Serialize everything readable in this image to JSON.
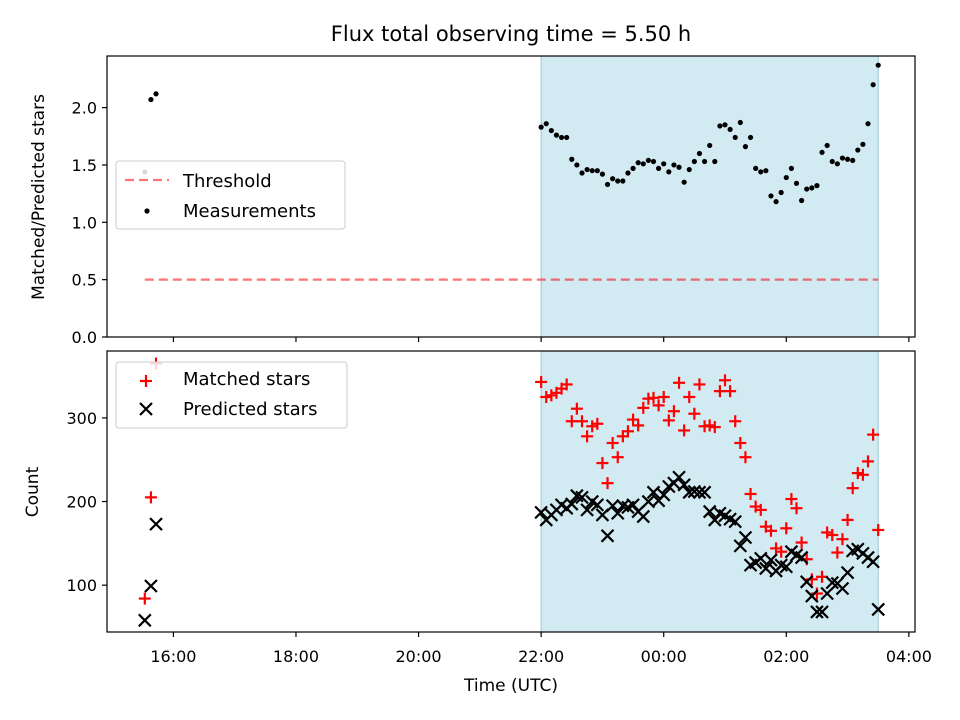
{
  "figure": {
    "title": "Flux total observing time = 5.50 h",
    "xlabel": "Time (UTC)",
    "xticks": [
      "16:00",
      "18:00",
      "20:00",
      "22:00",
      "00:00",
      "02:00",
      "04:00"
    ],
    "shaded_span": [
      "22:00",
      "03:30"
    ]
  },
  "colors": {
    "shade": "#add8e6",
    "threshold": "#ff0000",
    "matched": "#ff0000",
    "predicted": "#000000",
    "measurements": "#000000"
  },
  "chart_data": [
    {
      "type": "scatter",
      "ylabel": "Matched/Predicted stars",
      "xlim": [
        "14:55",
        "04:06"
      ],
      "ylim": [
        0,
        2.45
      ],
      "yticks": [
        "0.0",
        "0.5",
        "1.0",
        "1.5",
        "2.0"
      ],
      "legend_position": "center-left",
      "threshold": {
        "name": "Threshold",
        "value": 0.5,
        "x_range": [
          "15:32",
          "03:30"
        ]
      },
      "series": [
        {
          "name": "Measurements",
          "points": [
            [
              "15:32",
              1.44
            ],
            [
              "15:38",
              2.07
            ],
            [
              "15:43",
              2.12
            ],
            [
              "22:00",
              1.83
            ],
            [
              "22:05",
              1.86
            ],
            [
              "22:10",
              1.8
            ],
            [
              "22:15",
              1.76
            ],
            [
              "22:20",
              1.74
            ],
            [
              "22:25",
              1.74
            ],
            [
              "22:30",
              1.55
            ],
            [
              "22:35",
              1.5
            ],
            [
              "22:40",
              1.43
            ],
            [
              "22:45",
              1.46
            ],
            [
              "22:50",
              1.45
            ],
            [
              "22:55",
              1.45
            ],
            [
              "23:00",
              1.42
            ],
            [
              "23:05",
              1.33
            ],
            [
              "23:10",
              1.38
            ],
            [
              "23:15",
              1.36
            ],
            [
              "23:20",
              1.36
            ],
            [
              "23:25",
              1.43
            ],
            [
              "23:30",
              1.47
            ],
            [
              "23:35",
              1.52
            ],
            [
              "23:40",
              1.51
            ],
            [
              "23:45",
              1.54
            ],
            [
              "23:50",
              1.53
            ],
            [
              "23:55",
              1.47
            ],
            [
              "00:00",
              1.51
            ],
            [
              "00:05",
              1.44
            ],
            [
              "00:10",
              1.5
            ],
            [
              "00:15",
              1.48
            ],
            [
              "00:20",
              1.35
            ],
            [
              "00:25",
              1.46
            ],
            [
              "00:30",
              1.53
            ],
            [
              "00:35",
              1.6
            ],
            [
              "00:40",
              1.53
            ],
            [
              "00:45",
              1.67
            ],
            [
              "00:50",
              1.53
            ],
            [
              "00:55",
              1.84
            ],
            [
              "01:00",
              1.85
            ],
            [
              "01:05",
              1.81
            ],
            [
              "01:10",
              1.74
            ],
            [
              "01:15",
              1.87
            ],
            [
              "01:20",
              1.66
            ],
            [
              "01:25",
              1.74
            ],
            [
              "01:30",
              1.47
            ],
            [
              "01:35",
              1.44
            ],
            [
              "01:40",
              1.45
            ],
            [
              "01:45",
              1.23
            ],
            [
              "01:50",
              1.18
            ],
            [
              "01:55",
              1.26
            ],
            [
              "02:00",
              1.39
            ],
            [
              "02:05",
              1.47
            ],
            [
              "02:10",
              1.34
            ],
            [
              "02:15",
              1.19
            ],
            [
              "02:20",
              1.29
            ],
            [
              "02:25",
              1.3
            ],
            [
              "02:30",
              1.32
            ],
            [
              "02:35",
              1.61
            ],
            [
              "02:40",
              1.67
            ],
            [
              "02:45",
              1.53
            ],
            [
              "02:50",
              1.51
            ],
            [
              "02:55",
              1.56
            ],
            [
              "03:00",
              1.55
            ],
            [
              "03:05",
              1.54
            ],
            [
              "03:10",
              1.63
            ],
            [
              "03:15",
              1.68
            ],
            [
              "03:20",
              1.86
            ],
            [
              "03:25",
              2.2
            ],
            [
              "03:30",
              2.37
            ]
          ]
        }
      ]
    },
    {
      "type": "scatter",
      "ylabel": "Count",
      "xlim": [
        "14:55",
        "04:06"
      ],
      "ylim": [
        44,
        380
      ],
      "yticks": [
        "100",
        "200",
        "300"
      ],
      "legend_position": "upper-left",
      "series": [
        {
          "name": "Matched stars",
          "marker": "+",
          "points": [
            [
              "15:32",
              84
            ],
            [
              "15:38",
              205
            ],
            [
              "15:43",
              365
            ],
            [
              "22:00",
              343
            ],
            [
              "22:05",
              325
            ],
            [
              "22:10",
              327
            ],
            [
              "22:15",
              330
            ],
            [
              "22:20",
              335
            ],
            [
              "22:25",
              340
            ],
            [
              "22:30",
              296
            ],
            [
              "22:35",
              311
            ],
            [
              "22:40",
              296
            ],
            [
              "22:45",
              278
            ],
            [
              "22:50",
              290
            ],
            [
              "22:55",
              293
            ],
            [
              "23:00",
              246
            ],
            [
              "23:05",
              222
            ],
            [
              "23:10",
              270
            ],
            [
              "23:15",
              253
            ],
            [
              "23:20",
              278
            ],
            [
              "23:25",
              284
            ],
            [
              "23:30",
              298
            ],
            [
              "23:35",
              291
            ],
            [
              "23:40",
              312
            ],
            [
              "23:45",
              323
            ],
            [
              "23:50",
              324
            ],
            [
              "23:55",
              315
            ],
            [
              "00:00",
              325
            ],
            [
              "00:05",
              297
            ],
            [
              "00:10",
              308
            ],
            [
              "00:15",
              342
            ],
            [
              "00:20",
              285
            ],
            [
              "00:25",
              325
            ],
            [
              "00:30",
              305
            ],
            [
              "00:35",
              340
            ],
            [
              "00:40",
              290
            ],
            [
              "00:45",
              291
            ],
            [
              "00:50",
              289
            ],
            [
              "00:55",
              332
            ],
            [
              "01:00",
              345
            ],
            [
              "01:05",
              332
            ],
            [
              "01:10",
              296
            ],
            [
              "01:15",
              270
            ],
            [
              "01:20",
              253
            ],
            [
              "01:25",
              209
            ],
            [
              "01:30",
              194
            ],
            [
              "01:35",
              190
            ],
            [
              "01:40",
              170
            ],
            [
              "01:45",
              165
            ],
            [
              "01:50",
              144
            ],
            [
              "01:55",
              140
            ],
            [
              "02:00",
              168
            ],
            [
              "02:05",
              203
            ],
            [
              "02:10",
              192
            ],
            [
              "02:15",
              151
            ],
            [
              "02:20",
              131
            ],
            [
              "02:25",
              107
            ],
            [
              "02:30",
              90
            ],
            [
              "02:35",
              110
            ],
            [
              "02:40",
              163
            ],
            [
              "02:45",
              160
            ],
            [
              "02:50",
              139
            ],
            [
              "02:55",
              155
            ],
            [
              "03:00",
              178
            ],
            [
              "03:05",
              216
            ],
            [
              "03:10",
              234
            ],
            [
              "03:15",
              232
            ],
            [
              "03:20",
              248
            ],
            [
              "03:25",
              280
            ],
            [
              "03:30",
              166
            ]
          ]
        },
        {
          "name": "Predicted stars",
          "marker": "x",
          "points": [
            [
              "15:32",
              58
            ],
            [
              "15:38",
              99
            ],
            [
              "15:43",
              173
            ],
            [
              "22:00",
              187
            ],
            [
              "22:05",
              178
            ],
            [
              "22:10",
              184
            ],
            [
              "22:15",
              190
            ],
            [
              "22:20",
              196
            ],
            [
              "22:25",
              192
            ],
            [
              "22:30",
              197
            ],
            [
              "22:35",
              207
            ],
            [
              "22:40",
              205
            ],
            [
              "22:45",
              190
            ],
            [
              "22:50",
              200
            ],
            [
              "22:55",
              196
            ],
            [
              "23:00",
              184
            ],
            [
              "23:05",
              159
            ],
            [
              "23:10",
              195
            ],
            [
              "23:15",
              186
            ],
            [
              "23:20",
              195
            ],
            [
              "23:25",
              193
            ],
            [
              "23:30",
              196
            ],
            [
              "23:35",
              188
            ],
            [
              "23:40",
              182
            ],
            [
              "23:45",
              200
            ],
            [
              "23:50",
              211
            ],
            [
              "23:55",
              201
            ],
            [
              "00:00",
              208
            ],
            [
              "00:05",
              218
            ],
            [
              "00:10",
              222
            ],
            [
              "00:15",
              229
            ],
            [
              "00:20",
              220
            ],
            [
              "00:25",
              211
            ],
            [
              "00:30",
              212
            ],
            [
              "00:35",
              211
            ],
            [
              "00:40",
              211
            ],
            [
              "00:45",
              188
            ],
            [
              "00:50",
              178
            ],
            [
              "00:55",
              186
            ],
            [
              "01:00",
              183
            ],
            [
              "01:05",
              179
            ],
            [
              "01:10",
              176
            ],
            [
              "01:15",
              147
            ],
            [
              "01:20",
              157
            ],
            [
              "01:25",
              124
            ],
            [
              "01:30",
              127
            ],
            [
              "01:35",
              132
            ],
            [
              "01:40",
              120
            ],
            [
              "01:45",
              130
            ],
            [
              "01:50",
              117
            ],
            [
              "01:55",
              124
            ],
            [
              "02:00",
              122
            ],
            [
              "02:05",
              140
            ],
            [
              "02:10",
              136
            ],
            [
              "02:15",
              133
            ],
            [
              "02:20",
              104
            ],
            [
              "02:25",
              87
            ],
            [
              "02:30",
              68
            ],
            [
              "02:35",
              68
            ],
            [
              "02:40",
              90
            ],
            [
              "02:45",
              103
            ],
            [
              "02:50",
              102
            ],
            [
              "02:55",
              96
            ],
            [
              "03:00",
              115
            ],
            [
              "03:05",
              141
            ],
            [
              "03:10",
              143
            ],
            [
              "03:15",
              138
            ],
            [
              "03:20",
              133
            ],
            [
              "03:25",
              128
            ],
            [
              "03:30",
              71
            ]
          ]
        }
      ]
    }
  ]
}
